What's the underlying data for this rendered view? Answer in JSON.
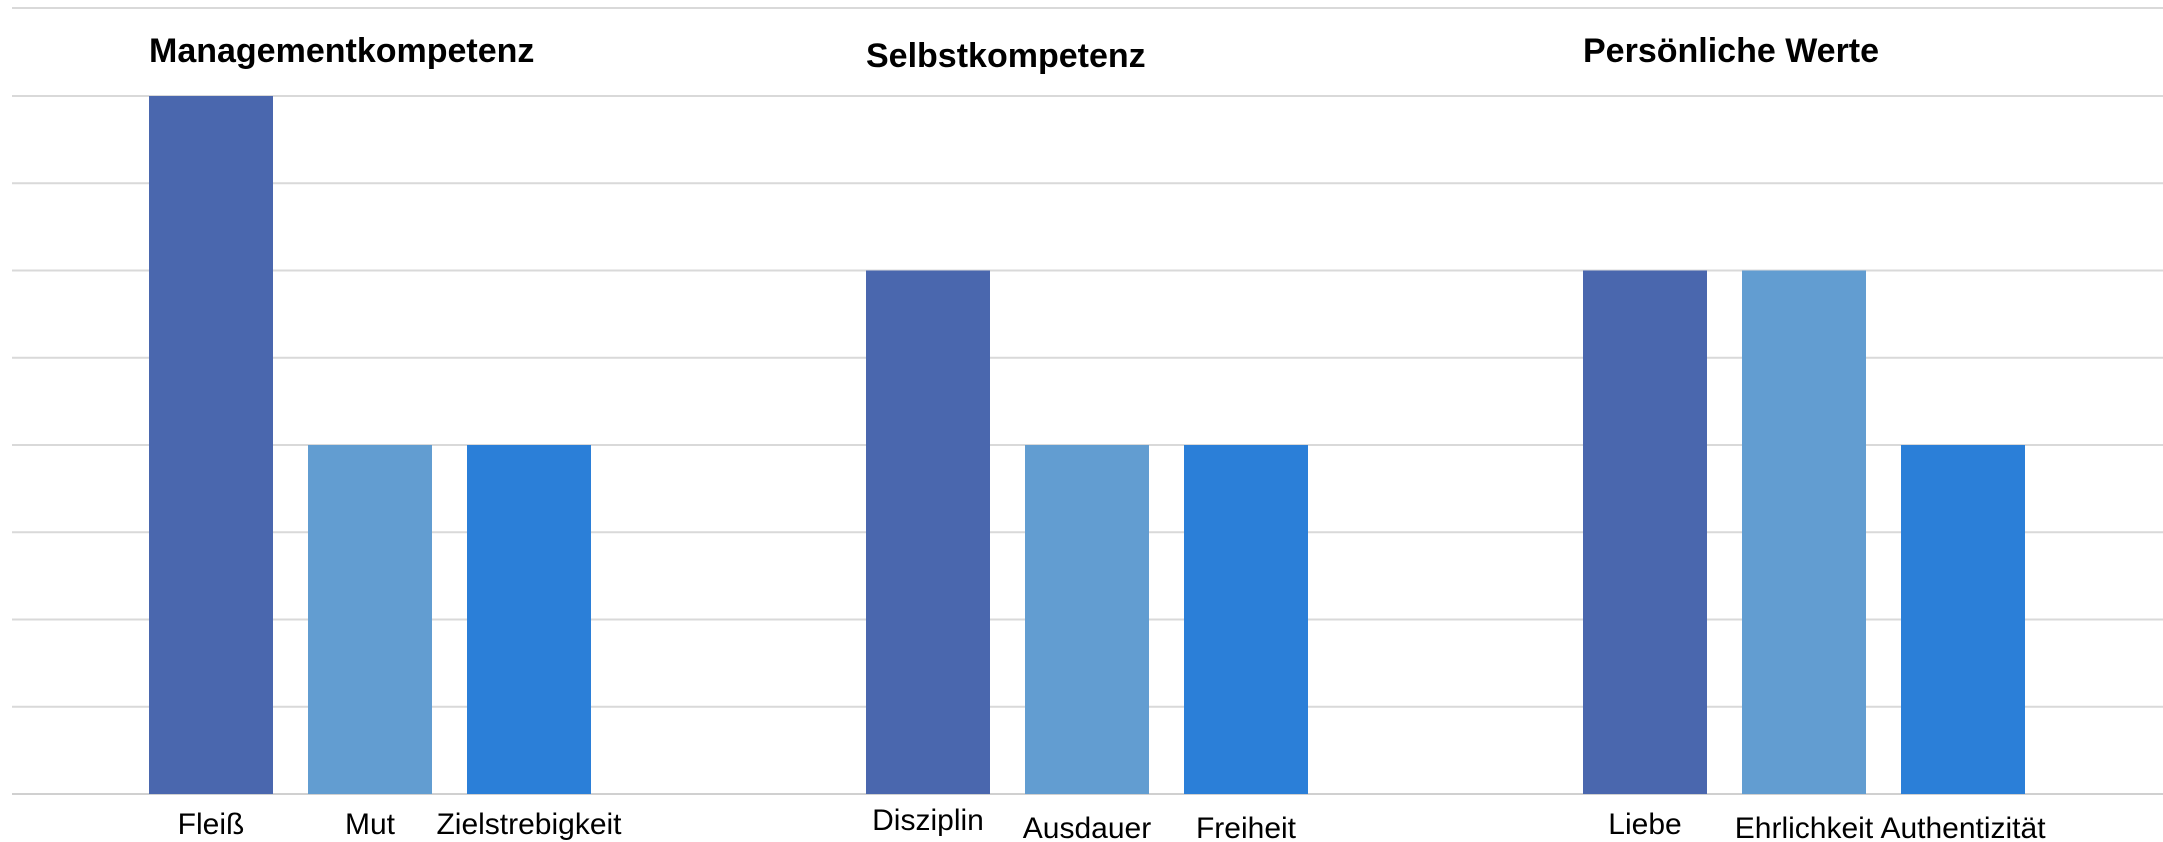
{
  "chart_data": {
    "type": "bar",
    "title": "",
    "xlabel": "",
    "ylabel": "",
    "ylim": [
      0,
      8
    ],
    "grid": true,
    "legend": "none",
    "colors": [
      "#4a67ae",
      "#629dd1",
      "#2b7fd8"
    ],
    "groups": [
      {
        "title": "Managementkompetenz",
        "categories": [
          "Fleiß",
          "Mut",
          "Zielstrebigkeit"
        ],
        "values": [
          8,
          4,
          4
        ]
      },
      {
        "title": "Selbstkompetenz",
        "categories": [
          "Disziplin",
          "Ausdauer",
          "Freiheit"
        ],
        "values": [
          6,
          4,
          4
        ]
      },
      {
        "title": "Persönliche Werte",
        "categories": [
          "Liebe",
          "Ehrlichkeit",
          "Authentizität"
        ],
        "values": [
          6,
          6,
          4
        ]
      }
    ]
  }
}
